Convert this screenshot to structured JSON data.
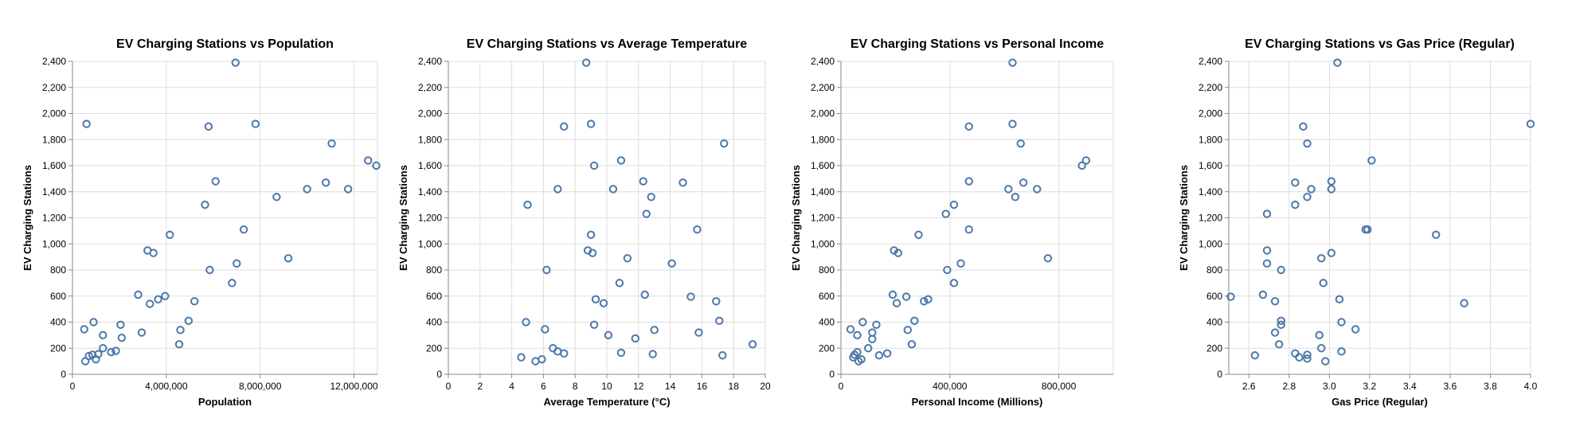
{
  "colors": {
    "point": "#4c78a8"
  },
  "chart_data": [
    {
      "type": "scatter",
      "title": "EV Charging Stations vs Population",
      "xlabel": "Population",
      "ylabel": "EV Charging Stations",
      "xlim": [
        0,
        13000000
      ],
      "ylim": [
        0,
        2400
      ],
      "xticks": [
        0,
        4000000,
        8000000,
        12000000
      ],
      "xtick_labels": [
        "0",
        "4,000,000",
        "8,000,000",
        "12,000,000"
      ],
      "yticks": [
        0,
        200,
        400,
        600,
        800,
        1000,
        1200,
        1400,
        1600,
        1800,
        2000,
        2200,
        2400
      ],
      "ytick_labels": [
        "0",
        "200",
        "400",
        "600",
        "800",
        "1,000",
        "1,200",
        "1,400",
        "1,600",
        "1,800",
        "2,000",
        "2,200",
        "2,400"
      ],
      "grid": true,
      "x": [
        6950000,
        600000,
        5800000,
        7800000,
        12600000,
        10800000,
        11750000,
        10000000,
        8700000,
        6100000,
        5650000,
        7300000,
        4150000,
        3200000,
        3450000,
        7000000,
        9200000,
        5850000,
        6800000,
        2800000,
        3300000,
        3950000,
        3650000,
        5200000,
        4950000,
        900000,
        4600000,
        1300000,
        2050000,
        500000,
        4550000,
        1300000,
        850000,
        2100000,
        2950000,
        1650000,
        550000,
        1000000,
        1850000,
        700000,
        1100000,
        12950000,
        11050000
      ],
      "y": [
        2390,
        1920,
        1900,
        1920,
        1640,
        1470,
        1420,
        1420,
        1360,
        1480,
        1300,
        1110,
        1070,
        950,
        930,
        850,
        890,
        800,
        700,
        610,
        540,
        600,
        575,
        560,
        410,
        400,
        340,
        300,
        380,
        345,
        230,
        200,
        150,
        280,
        320,
        170,
        100,
        115,
        180,
        140,
        155,
        1600,
        1770
      ]
    },
    {
      "type": "scatter",
      "title": "EV Charging Stations vs Average Temperature",
      "xlabel": "Average Temperature (°C)",
      "ylabel": "EV Charging Stations",
      "xlim": [
        0,
        20
      ],
      "ylim": [
        0,
        2400
      ],
      "xticks": [
        0,
        2,
        4,
        6,
        8,
        10,
        12,
        14,
        16,
        18,
        20
      ],
      "xtick_labels": [
        "0",
        "2",
        "4",
        "6",
        "8",
        "10",
        "12",
        "14",
        "16",
        "18",
        "20"
      ],
      "yticks": [
        0,
        200,
        400,
        600,
        800,
        1000,
        1200,
        1400,
        1600,
        1800,
        2000,
        2200,
        2400
      ],
      "ytick_labels": [
        "0",
        "200",
        "400",
        "600",
        "800",
        "1,000",
        "1,200",
        "1,400",
        "1,600",
        "1,800",
        "2,000",
        "2,200",
        "2,400"
      ],
      "grid": true,
      "x": [
        8.7,
        7.3,
        9.0,
        17.4,
        10.9,
        9.2,
        12.3,
        14.8,
        12.8,
        10.4,
        6.9,
        5.0,
        12.5,
        15.7,
        9.0,
        8.8,
        9.1,
        11.3,
        14.1,
        6.2,
        10.8,
        12.4,
        15.3,
        9.3,
        9.8,
        16.9,
        4.9,
        17.1,
        9.2,
        6.1,
        13.0,
        15.8,
        10.1,
        11.8,
        6.6,
        6.9,
        7.3,
        10.9,
        12.9,
        17.3,
        4.6,
        5.9,
        5.5,
        19.2
      ],
      "y": [
        2390,
        1900,
        1920,
        1770,
        1640,
        1600,
        1480,
        1470,
        1360,
        1420,
        1420,
        1300,
        1230,
        1110,
        1070,
        950,
        930,
        890,
        850,
        800,
        700,
        610,
        595,
        575,
        545,
        560,
        400,
        410,
        380,
        345,
        340,
        320,
        300,
        275,
        200,
        175,
        160,
        165,
        155,
        145,
        130,
        115,
        100,
        230
      ]
    },
    {
      "type": "scatter",
      "title": "EV Charging Stations vs Personal Income",
      "xlabel": "Personal Income (Millions)",
      "ylabel": "EV Charging Stations",
      "xlim": [
        0,
        1000000
      ],
      "ylim": [
        0,
        2400
      ],
      "xticks": [
        0,
        400000,
        800000
      ],
      "xtick_labels": [
        "0",
        "400,000",
        "800,000"
      ],
      "yticks": [
        0,
        200,
        400,
        600,
        800,
        1000,
        1200,
        1400,
        1600,
        1800,
        2000,
        2200,
        2400
      ],
      "ytick_labels": [
        "0",
        "200",
        "400",
        "600",
        "800",
        "1,000",
        "1,200",
        "1,400",
        "1,600",
        "1,800",
        "2,000",
        "2,200",
        "2,400"
      ],
      "grid": true,
      "x": [
        630000,
        630000,
        470000,
        660000,
        900000,
        885000,
        670000,
        720000,
        470000,
        615000,
        640000,
        415000,
        385000,
        470000,
        285000,
        195000,
        210000,
        760000,
        440000,
        390000,
        415000,
        190000,
        240000,
        320000,
        205000,
        305000,
        270000,
        245000,
        130000,
        80000,
        35000,
        115000,
        60000,
        260000,
        100000,
        170000,
        115000,
        60000,
        50000,
        140000,
        45000,
        75000,
        65000
      ],
      "y": [
        2390,
        1920,
        1900,
        1770,
        1640,
        1600,
        1470,
        1420,
        1480,
        1420,
        1360,
        1300,
        1230,
        1110,
        1070,
        950,
        930,
        890,
        850,
        800,
        700,
        610,
        595,
        575,
        545,
        560,
        410,
        340,
        380,
        400,
        345,
        320,
        300,
        230,
        200,
        160,
        270,
        170,
        150,
        145,
        130,
        115,
        100
      ]
    },
    {
      "type": "scatter",
      "title": "EV Charging Stations vs Gas Price (Regular)",
      "xlabel": "Gas Price (Regular)",
      "ylabel": "EV Charging Stations",
      "xlim": [
        2.5,
        4.0
      ],
      "ylim": [
        0,
        2400
      ],
      "xticks": [
        2.6,
        2.8,
        3.0,
        3.2,
        3.4,
        3.6,
        3.8,
        4.0
      ],
      "xtick_labels": [
        "2.6",
        "2.8",
        "3.0",
        "3.2",
        "3.4",
        "3.6",
        "3.8",
        "4.0"
      ],
      "yticks": [
        0,
        200,
        400,
        600,
        800,
        1000,
        1200,
        1400,
        1600,
        1800,
        2000,
        2200,
        2400
      ],
      "ytick_labels": [
        "0",
        "200",
        "400",
        "600",
        "800",
        "1,000",
        "1,200",
        "1,400",
        "1,600",
        "1,800",
        "2,000",
        "2,200",
        "2,400"
      ],
      "grid": true,
      "x": [
        3.04,
        4.0,
        2.87,
        2.89,
        3.19,
        3.21,
        2.83,
        3.01,
        3.01,
        2.91,
        2.89,
        2.83,
        2.69,
        3.18,
        3.53,
        2.69,
        3.01,
        2.96,
        2.69,
        2.76,
        2.97,
        2.51,
        2.67,
        3.05,
        3.67,
        2.73,
        2.76,
        2.76,
        3.06,
        3.13,
        2.75,
        2.95,
        2.63,
        2.96,
        2.73,
        2.83,
        2.85,
        2.89,
        3.06,
        2.89,
        2.98
      ],
      "y": [
        2390,
        1920,
        1900,
        1770,
        1110,
        1640,
        1470,
        1480,
        1420,
        1420,
        1360,
        1300,
        1230,
        1110,
        1070,
        950,
        930,
        890,
        850,
        800,
        700,
        595,
        610,
        575,
        545,
        560,
        410,
        380,
        400,
        345,
        230,
        300,
        145,
        200,
        320,
        160,
        130,
        150,
        175,
        120,
        100
      ]
    }
  ]
}
